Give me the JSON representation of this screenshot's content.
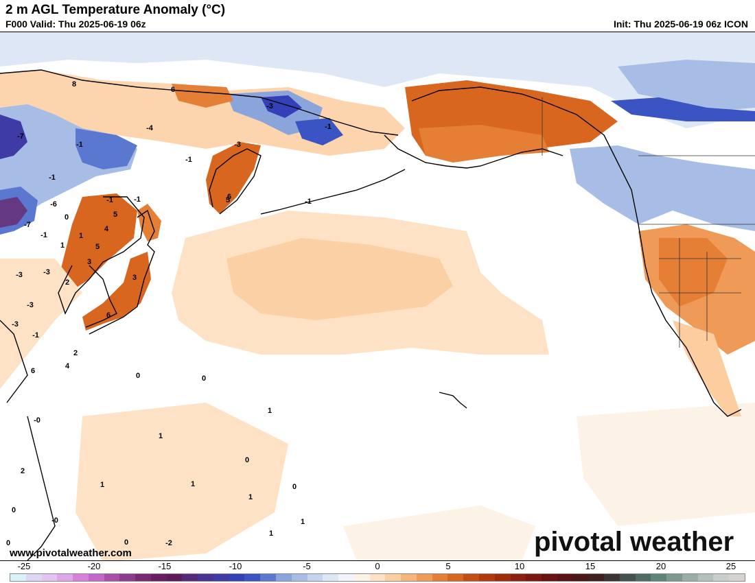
{
  "header": {
    "title": "2 m AGL Temperature Anomaly (°C)",
    "valid": "F000 Valid: Thu 2025-06-19 06z",
    "init": "Init: Thu 2025-06-19 06z ICON"
  },
  "branding": {
    "website": "www.pivotalweather.com",
    "logo": "pivotal weather"
  },
  "map": {
    "region": "North Pacific",
    "labels": [
      "8",
      "6",
      "-3",
      "-1",
      "-7",
      "-4",
      "-1",
      "-1",
      "-3",
      "-1",
      "6",
      "-1",
      "5",
      "-1",
      "5",
      "-1",
      "-6",
      "4",
      "0",
      "-7",
      "5",
      "-1",
      "1",
      "1",
      "3",
      "-3",
      "-3",
      "2",
      "3",
      "-3",
      "6",
      "-3",
      "-1",
      "6",
      "2",
      "4",
      "0",
      "0",
      "1",
      "1",
      "0",
      "1",
      "1",
      "1",
      "0",
      "1",
      "1",
      "0",
      "-0",
      "0",
      "-2",
      "-0",
      "2",
      "0"
    ]
  },
  "colorbar": {
    "tick_labels": [
      "-25",
      "-20",
      "-15",
      "-10",
      "-5",
      "0",
      "5",
      "10",
      "15",
      "20",
      "25"
    ],
    "colors": [
      "#d7f3f9",
      "#ddd6f5",
      "#e4c4f0",
      "#e0a6ea",
      "#d682dc",
      "#c566cc",
      "#a94ea9",
      "#8c3c8c",
      "#7a2a73",
      "#6a1d62",
      "#5e1a5a",
      "#552a7a",
      "#4a3493",
      "#3e3aa6",
      "#3440b8",
      "#3b54c4",
      "#5a78d0",
      "#8aa4dc",
      "#a8bde6",
      "#c4d4ef",
      "#dde7f6",
      "#f1f5fb",
      "#fdf2e6",
      "#fde2c6",
      "#fbcd9f",
      "#f6b57c",
      "#f09a57",
      "#e57f36",
      "#d8661f",
      "#c64d12",
      "#b3380c",
      "#a12a0c",
      "#8e1e0d",
      "#7c160f",
      "#6a1212",
      "#591214",
      "#4a1616",
      "#3e2020",
      "#3a3434",
      "#435151",
      "#4f6b66",
      "#5f847a",
      "#7d9a90",
      "#9aaea6",
      "#b3c0bb",
      "#c8cecc",
      "#d8d3d1"
    ]
  }
}
